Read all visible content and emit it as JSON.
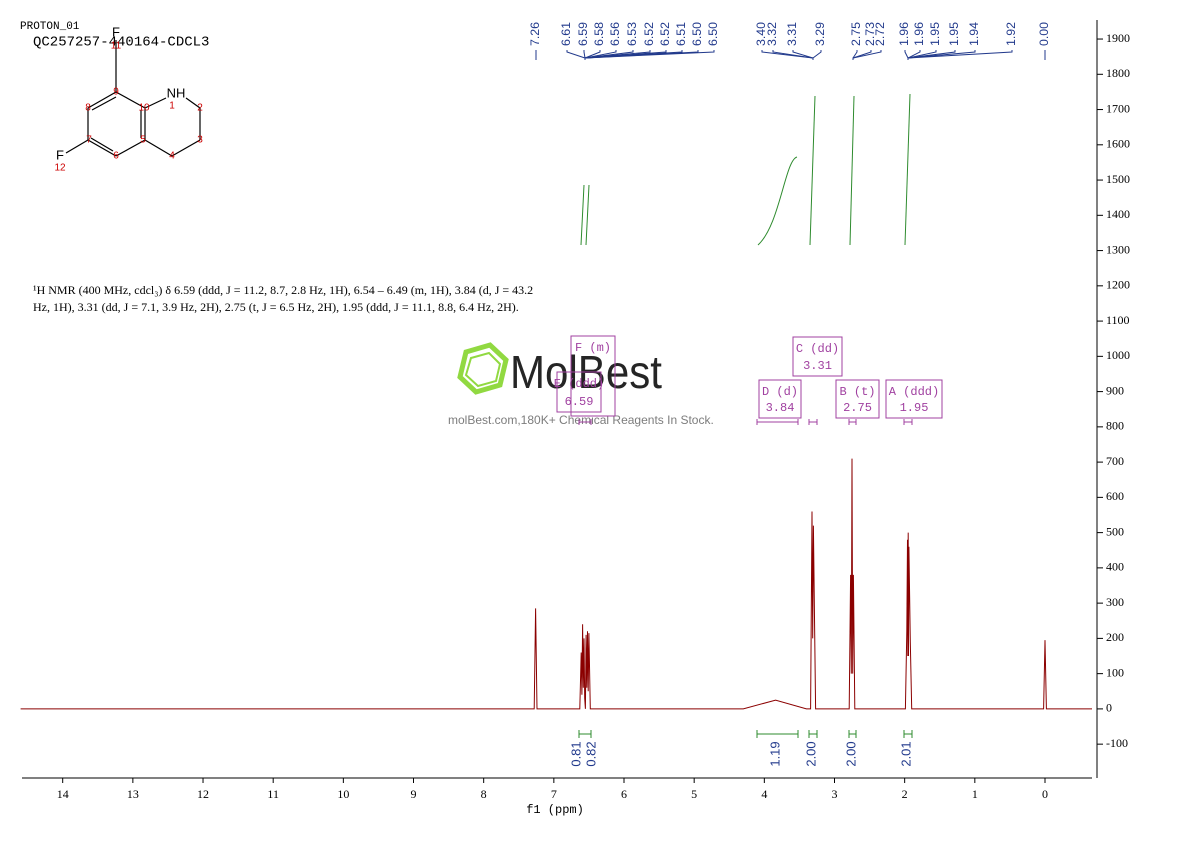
{
  "header": {
    "experiment": "PROTON_01",
    "sample": "QC257257-440164-CDCL3"
  },
  "structure": {
    "labels": [
      "F",
      "11",
      "9",
      "NH",
      "1",
      "8",
      "10",
      "2",
      "7",
      "5",
      "3",
      "F",
      "6",
      "4",
      "12"
    ]
  },
  "description": [
    "¹H NMR (400 MHz, cdcl₃) δ 6.59 (ddd, J = 11.2, 8.7, 2.8 Hz, 1H), 6.54 – 6.49 (m, 1H), 3.84 (d, J = 43.2",
    "Hz, 1H), 3.31 (dd, J = 7.1, 3.9 Hz, 2H), 2.75 (t, J = 6.5 Hz, 2H), 1.95 (ddd, J = 11.1, 8.8, 6.4 Hz, 2H)."
  ],
  "watermark": {
    "logo": "MolBest",
    "tagline": "molBest.com,180K+ Chemical Reagents In Stock."
  },
  "peak_labels": [
    "7.26",
    "6.61",
    "6.59",
    "6.58",
    "6.56",
    "6.53",
    "6.52",
    "6.52",
    "6.51",
    "6.50",
    "6.50",
    "3.40",
    "3.32",
    "3.31",
    "3.29",
    "2.75",
    "2.73",
    "2.72",
    "1.96",
    "1.96",
    "1.95",
    "1.95",
    "1.94",
    "1.92",
    "0.00"
  ],
  "multiplets": [
    {
      "name": "F (m)"
    },
    {
      "name": "E (ddd)",
      "shift": "6.59"
    },
    {
      "name": "D (d)",
      "shift": "3.84"
    },
    {
      "name": "C (dd)",
      "shift": "3.31"
    },
    {
      "name": "B (t)",
      "shift": "2.75"
    },
    {
      "name": "A (ddd)",
      "shift": "1.95"
    }
  ],
  "integrals": [
    "0.81",
    "0.82",
    "1.19",
    "2.00",
    "2.00",
    "2.01"
  ],
  "chart_data": {
    "type": "line",
    "xlabel": "f1 (ppm)",
    "color": "#8b0000",
    "x": [
      14.6,
      7.28,
      7.26,
      7.24,
      6.63,
      6.61,
      6.6,
      6.59,
      6.58,
      6.57,
      6.56,
      6.55,
      6.54,
      6.53,
      6.52,
      6.51,
      6.5,
      6.48,
      4.3,
      3.84,
      3.4,
      3.34,
      3.32,
      3.31,
      3.3,
      3.27,
      2.79,
      2.77,
      2.76,
      2.75,
      2.74,
      2.73,
      2.71,
      1.99,
      1.97,
      1.96,
      1.955,
      1.95,
      1.945,
      1.94,
      1.92,
      1.9,
      0.02,
      0,
      -0.02,
      -0.67
    ],
    "values": [
      0,
      0,
      285,
      0,
      0,
      160,
      40,
      240,
      60,
      200,
      30,
      0,
      210,
      60,
      220,
      50,
      215,
      0,
      0,
      25,
      0,
      0,
      560,
      200,
      520,
      0,
      0,
      380,
      100,
      710,
      100,
      380,
      0,
      0,
      220,
      480,
      150,
      500,
      150,
      460,
      190,
      0,
      0,
      195,
      0,
      0
    ],
    "xlim": [
      14.58,
      -0.67
    ],
    "xticks": [
      14,
      13,
      12,
      11,
      10,
      9,
      8,
      7,
      6,
      5,
      4,
      3,
      2,
      1,
      0
    ],
    "ylim": [
      -196,
      1954
    ],
    "yticks": [
      -100,
      0,
      100,
      200,
      300,
      400,
      500,
      600,
      700,
      800,
      900,
      1000,
      1100,
      1200,
      1300,
      1400,
      1500,
      1600,
      1700,
      1800,
      1900
    ]
  }
}
